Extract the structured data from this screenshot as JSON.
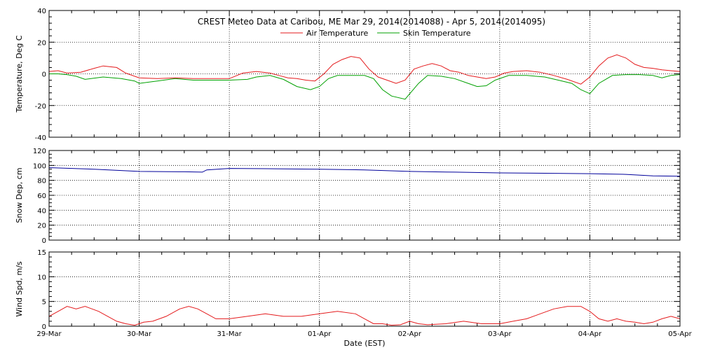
{
  "chart_data": [
    {
      "type": "line",
      "title": "CREST Meteo Data at Caribou, ME   Mar 29, 2014(2014088) - Apr  5, 2014(2014095)",
      "ylabel": "Temperature, Deg C",
      "ylim": [
        -40,
        40
      ],
      "yticks": [
        "40",
        "20",
        "0",
        "-20",
        "-40"
      ],
      "grid": true,
      "legend": "top-center",
      "series": [
        {
          "name": "Air Temperature",
          "color": "#e41a1c",
          "x": [
            0,
            0.1,
            0.2,
            0.35,
            0.5,
            0.6,
            0.75,
            0.85,
            1.0,
            1.2,
            1.4,
            1.6,
            1.8,
            2.0,
            2.15,
            2.3,
            2.45,
            2.55,
            2.65,
            2.75,
            2.85,
            2.95,
            3.05,
            3.15,
            3.25,
            3.35,
            3.45,
            3.55,
            3.65,
            3.75,
            3.85,
            3.95,
            4.05,
            4.15,
            4.25,
            4.35,
            4.45,
            4.55,
            4.65,
            4.75,
            4.85,
            4.95,
            5.05,
            5.15,
            5.3,
            5.45,
            5.6,
            5.75,
            5.9,
            6.0,
            6.1,
            6.2,
            6.3,
            6.4,
            6.5,
            6.6,
            6.7,
            6.8,
            6.9,
            7.0
          ],
          "values": [
            1.5,
            2.0,
            0.5,
            1.0,
            3.5,
            5.0,
            4.0,
            0.5,
            -2.5,
            -3.0,
            -2.5,
            -3.0,
            -3.0,
            -3.0,
            0.5,
            1.5,
            0.5,
            -1.0,
            -2.5,
            -3.0,
            -4.0,
            -4.5,
            0.0,
            6.0,
            9.0,
            11.0,
            10.0,
            3.0,
            -2.0,
            -4.0,
            -6.0,
            -4.0,
            3.0,
            5.0,
            6.5,
            5.0,
            2.0,
            1.0,
            -1.0,
            -2.0,
            -3.0,
            -2.0,
            0.5,
            1.5,
            2.0,
            1.0,
            -1.0,
            -3.5,
            -6.5,
            -2.0,
            5.0,
            10.0,
            12.0,
            10.0,
            6.0,
            4.0,
            3.5,
            2.5,
            2.0,
            1.5
          ]
        },
        {
          "name": "Skin Temperature",
          "color": "#00a000",
          "x": [
            0,
            0.1,
            0.2,
            0.3,
            0.4,
            0.6,
            0.8,
            0.95,
            1.0,
            1.2,
            1.4,
            1.6,
            1.8,
            2.0,
            2.2,
            2.3,
            2.45,
            2.6,
            2.75,
            2.9,
            3.0,
            3.1,
            3.2,
            3.35,
            3.5,
            3.6,
            3.7,
            3.8,
            3.95,
            4.1,
            4.2,
            4.35,
            4.5,
            4.65,
            4.75,
            4.85,
            4.95,
            5.1,
            5.3,
            5.5,
            5.65,
            5.8,
            5.9,
            6.0,
            6.1,
            6.25,
            6.4,
            6.55,
            6.7,
            6.8,
            6.9,
            7.0
          ],
          "values": [
            0.0,
            0.0,
            -0.5,
            -1.5,
            -3.5,
            -2.0,
            -3.0,
            -4.5,
            -6.0,
            -4.5,
            -3.0,
            -4.0,
            -4.0,
            -4.0,
            -3.5,
            -2.0,
            -1.0,
            -3.5,
            -8.0,
            -10.0,
            -8.0,
            -3.0,
            -1.0,
            -1.0,
            -1.0,
            -3.0,
            -10.0,
            -14.0,
            -16.0,
            -6.0,
            -1.0,
            -1.5,
            -3.0,
            -6.0,
            -8.0,
            -7.5,
            -4.0,
            -1.0,
            -1.0,
            -2.0,
            -4.0,
            -6.0,
            -10.0,
            -12.5,
            -6.0,
            -1.0,
            -0.5,
            -0.5,
            -1.0,
            -2.5,
            -1.0,
            -0.5
          ]
        }
      ]
    },
    {
      "type": "line",
      "ylabel": "Snow Dep, cm",
      "ylim": [
        0,
        120
      ],
      "yticks": [
        "120",
        "100",
        "80",
        "60",
        "40",
        "20",
        "0"
      ],
      "grid": true,
      "series": [
        {
          "color": "#00009a",
          "x": [
            0,
            0.5,
            1.0,
            1.5,
            1.7,
            1.75,
            2.0,
            2.5,
            3.0,
            3.5,
            4.0,
            4.5,
            5.0,
            5.5,
            6.0,
            6.4,
            6.7,
            7.0
          ],
          "values": [
            97.0,
            95.0,
            92.0,
            91.5,
            91.0,
            94.0,
            96.0,
            95.5,
            95.0,
            94.0,
            92.0,
            91.0,
            90.0,
            89.5,
            89.0,
            88.0,
            86.0,
            85.5
          ]
        }
      ]
    },
    {
      "type": "line",
      "ylabel": "Wind Spd, m/s",
      "xlabel": "Date (EST)",
      "ylim": [
        0,
        15
      ],
      "yticks": [
        "15",
        "10",
        "5",
        "0"
      ],
      "xtick_labels": [
        "29-Mar",
        "30-Mar",
        "31-Mar",
        "01-Apr",
        "02-Apr",
        "03-Apr",
        "04-Apr",
        "05-Apr"
      ],
      "grid": true,
      "series": [
        {
          "color": "#e41a1c",
          "x": [
            0,
            0.1,
            0.2,
            0.3,
            0.4,
            0.55,
            0.65,
            0.75,
            0.85,
            0.95,
            1.05,
            1.15,
            1.3,
            1.45,
            1.55,
            1.65,
            1.75,
            1.85,
            2.0,
            2.2,
            2.4,
            2.6,
            2.8,
            3.0,
            3.2,
            3.4,
            3.5,
            3.6,
            3.7,
            3.8,
            3.9,
            4.0,
            4.1,
            4.2,
            4.4,
            4.6,
            4.8,
            5.0,
            5.15,
            5.3,
            5.45,
            5.6,
            5.75,
            5.9,
            6.0,
            6.1,
            6.2,
            6.3,
            6.4,
            6.5,
            6.6,
            6.7,
            6.8,
            6.9,
            7.0
          ],
          "values": [
            2.0,
            3.0,
            4.0,
            3.5,
            4.0,
            3.0,
            2.0,
            1.0,
            0.5,
            0.2,
            0.8,
            1.0,
            2.0,
            3.5,
            4.0,
            3.5,
            2.5,
            1.5,
            1.5,
            2.0,
            2.5,
            2.0,
            2.0,
            2.5,
            3.0,
            2.5,
            1.5,
            0.5,
            0.5,
            0.2,
            0.3,
            1.0,
            0.5,
            0.3,
            0.5,
            1.0,
            0.5,
            0.5,
            1.0,
            1.5,
            2.5,
            3.5,
            4.0,
            4.0,
            3.0,
            1.5,
            1.0,
            1.5,
            1.0,
            0.8,
            0.5,
            0.8,
            1.5,
            2.0,
            1.5
          ]
        }
      ]
    }
  ]
}
